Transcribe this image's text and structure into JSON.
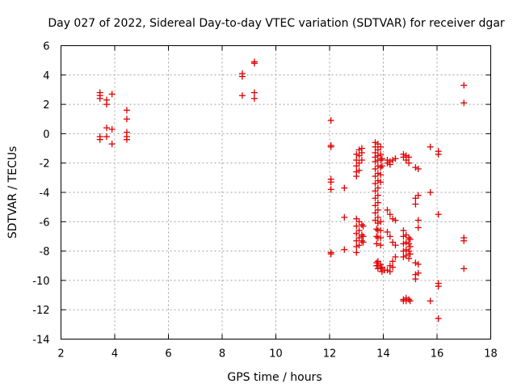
{
  "chart_data": {
    "type": "scatter",
    "title": "Day 027 of 2022, Sidereal Day-to-day VTEC variation (SDTVAR) for receiver dgar",
    "xlabel": "GPS time / hours",
    "ylabel": "SDTVAR / TECUs",
    "xlim": [
      2,
      18
    ],
    "ylim": [
      -14,
      6
    ],
    "xticks": [
      2,
      4,
      6,
      8,
      10,
      12,
      14,
      16,
      18
    ],
    "yticks": [
      -14,
      -12,
      -10,
      -8,
      -6,
      -4,
      -2,
      0,
      2,
      4,
      6
    ],
    "grid": true,
    "marker": "+",
    "color": "#e00000",
    "series": [
      {
        "name": "SDTVAR",
        "points": [
          [
            3.45,
            2.8
          ],
          [
            3.45,
            2.6
          ],
          [
            3.45,
            2.4
          ],
          [
            3.45,
            -0.2
          ],
          [
            3.45,
            -0.4
          ],
          [
            3.7,
            2.3
          ],
          [
            3.7,
            2.0
          ],
          [
            3.7,
            0.4
          ],
          [
            3.7,
            -0.2
          ],
          [
            3.9,
            2.7
          ],
          [
            3.9,
            0.3
          ],
          [
            3.9,
            -0.7
          ],
          [
            4.45,
            1.6
          ],
          [
            4.45,
            1.0
          ],
          [
            4.45,
            0.1
          ],
          [
            4.45,
            -0.2
          ],
          [
            4.45,
            -0.4
          ],
          [
            8.75,
            4.1
          ],
          [
            8.75,
            3.9
          ],
          [
            8.75,
            2.6
          ],
          [
            9.2,
            4.9
          ],
          [
            9.2,
            4.8
          ],
          [
            9.2,
            2.8
          ],
          [
            9.2,
            2.4
          ],
          [
            12.05,
            0.9
          ],
          [
            12.05,
            -0.8
          ],
          [
            12.05,
            -0.9
          ],
          [
            12.05,
            -3.1
          ],
          [
            12.05,
            -3.3
          ],
          [
            12.05,
            -3.8
          ],
          [
            12.05,
            -8.1
          ],
          [
            12.05,
            -8.2
          ],
          [
            12.55,
            -3.7
          ],
          [
            12.55,
            -5.7
          ],
          [
            12.55,
            -7.9
          ],
          [
            13.0,
            -1.4
          ],
          [
            13.0,
            -1.8
          ],
          [
            13.0,
            -2.2
          ],
          [
            13.0,
            -2.6
          ],
          [
            13.0,
            -2.9
          ],
          [
            13.0,
            -5.8
          ],
          [
            13.0,
            -6.3
          ],
          [
            13.0,
            -6.8
          ],
          [
            13.0,
            -7.3
          ],
          [
            13.0,
            -7.7
          ],
          [
            13.0,
            -8.1
          ],
          [
            13.1,
            -1.1
          ],
          [
            13.1,
            -1.5
          ],
          [
            13.1,
            -2.0
          ],
          [
            13.1,
            -2.5
          ],
          [
            13.1,
            -6.0
          ],
          [
            13.1,
            -6.6
          ],
          [
            13.1,
            -7.1
          ],
          [
            13.1,
            -7.6
          ],
          [
            13.2,
            -1.0
          ],
          [
            13.2,
            -1.3
          ],
          [
            13.2,
            -1.8
          ],
          [
            13.2,
            -6.2
          ],
          [
            13.2,
            -6.9
          ],
          [
            13.2,
            -7.3
          ],
          [
            13.25,
            -6.3
          ],
          [
            13.25,
            -7.0
          ],
          [
            13.25,
            -7.4
          ],
          [
            13.7,
            -0.6
          ],
          [
            13.7,
            -0.9
          ],
          [
            13.7,
            -1.3
          ],
          [
            13.7,
            -1.6
          ],
          [
            13.7,
            -1.9
          ],
          [
            13.7,
            -2.4
          ],
          [
            13.7,
            -2.9
          ],
          [
            13.7,
            -3.4
          ],
          [
            13.7,
            -3.9
          ],
          [
            13.7,
            -4.4
          ],
          [
            13.7,
            -4.9
          ],
          [
            13.7,
            -5.4
          ],
          [
            13.7,
            -5.9
          ],
          [
            13.75,
            -6.5
          ],
          [
            13.75,
            -7.0
          ],
          [
            13.75,
            -7.5
          ],
          [
            13.75,
            -8.8
          ],
          [
            13.75,
            -9.0
          ],
          [
            13.8,
            -0.7
          ],
          [
            13.8,
            -1.1
          ],
          [
            13.8,
            -1.5
          ],
          [
            13.8,
            -1.8
          ],
          [
            13.8,
            -2.2
          ],
          [
            13.8,
            -2.7
          ],
          [
            13.8,
            -3.2
          ],
          [
            13.8,
            -3.7
          ],
          [
            13.8,
            -4.2
          ],
          [
            13.8,
            -4.7
          ],
          [
            13.8,
            -5.2
          ],
          [
            13.8,
            -5.7
          ],
          [
            13.8,
            -6.1
          ],
          [
            13.8,
            -6.6
          ],
          [
            13.8,
            -7.1
          ],
          [
            13.8,
            -8.7
          ],
          [
            13.8,
            -9.0
          ],
          [
            13.8,
            -9.2
          ],
          [
            13.9,
            -0.9
          ],
          [
            13.9,
            -1.4
          ],
          [
            13.9,
            -1.8
          ],
          [
            13.9,
            -2.3
          ],
          [
            13.9,
            -2.8
          ],
          [
            13.9,
            -3.3
          ],
          [
            13.9,
            -6.0
          ],
          [
            13.9,
            -6.6
          ],
          [
            13.9,
            -7.1
          ],
          [
            13.9,
            -7.6
          ],
          [
            13.9,
            -8.9
          ],
          [
            13.9,
            -9.2
          ],
          [
            13.95,
            -1.7
          ],
          [
            13.95,
            -2.2
          ],
          [
            13.95,
            -9.1
          ],
          [
            13.95,
            -9.4
          ],
          [
            14.05,
            -9.3
          ],
          [
            14.15,
            -1.8
          ],
          [
            14.15,
            -2.0
          ],
          [
            14.15,
            -5.2
          ],
          [
            14.15,
            -6.7
          ],
          [
            14.15,
            -9.3
          ],
          [
            14.25,
            -1.9
          ],
          [
            14.25,
            -2.1
          ],
          [
            14.25,
            -5.5
          ],
          [
            14.25,
            -7.0
          ],
          [
            14.25,
            -9.0
          ],
          [
            14.25,
            -9.4
          ],
          [
            14.35,
            -1.8
          ],
          [
            14.35,
            -5.8
          ],
          [
            14.35,
            -7.4
          ],
          [
            14.35,
            -8.7
          ],
          [
            14.35,
            -9.1
          ],
          [
            14.45,
            -1.7
          ],
          [
            14.45,
            -5.9
          ],
          [
            14.45,
            -7.6
          ],
          [
            14.45,
            -8.4
          ],
          [
            14.75,
            -1.4
          ],
          [
            14.75,
            -1.6
          ],
          [
            14.75,
            -6.6
          ],
          [
            14.75,
            -7.0
          ],
          [
            14.75,
            -7.5
          ],
          [
            14.75,
            -8.0
          ],
          [
            14.75,
            -8.4
          ],
          [
            14.75,
            -11.3
          ],
          [
            14.75,
            -11.4
          ],
          [
            14.85,
            -1.5
          ],
          [
            14.85,
            -1.8
          ],
          [
            14.85,
            -6.9
          ],
          [
            14.85,
            -7.4
          ],
          [
            14.85,
            -7.9
          ],
          [
            14.85,
            -8.3
          ],
          [
            14.85,
            -11.2
          ],
          [
            14.85,
            -11.4
          ],
          [
            14.95,
            -1.6
          ],
          [
            14.95,
            -2.0
          ],
          [
            14.95,
            -7.1
          ],
          [
            14.95,
            -7.5
          ],
          [
            14.95,
            -8.0
          ],
          [
            14.95,
            -8.5
          ],
          [
            14.95,
            -11.3
          ],
          [
            15.0,
            -7.2
          ],
          [
            15.0,
            -7.7
          ],
          [
            15.0,
            -8.2
          ],
          [
            15.0,
            -11.4
          ],
          [
            15.2,
            -2.3
          ],
          [
            15.2,
            -4.4
          ],
          [
            15.2,
            -4.8
          ],
          [
            15.2,
            -8.8
          ],
          [
            15.2,
            -9.6
          ],
          [
            15.2,
            -9.9
          ],
          [
            15.3,
            -2.4
          ],
          [
            15.3,
            -4.2
          ],
          [
            15.3,
            -5.9
          ],
          [
            15.3,
            -6.4
          ],
          [
            15.3,
            -8.9
          ],
          [
            15.3,
            -9.5
          ],
          [
            15.75,
            -0.9
          ],
          [
            15.75,
            -4.0
          ],
          [
            15.75,
            -11.4
          ],
          [
            16.05,
            -1.2
          ],
          [
            16.05,
            -1.4
          ],
          [
            16.05,
            -5.5
          ],
          [
            16.05,
            -10.2
          ],
          [
            16.05,
            -10.4
          ],
          [
            16.05,
            -12.6
          ],
          [
            17.0,
            3.3
          ],
          [
            17.0,
            2.1
          ],
          [
            17.0,
            -7.1
          ],
          [
            17.0,
            -7.3
          ],
          [
            17.0,
            -9.2
          ]
        ]
      }
    ]
  }
}
